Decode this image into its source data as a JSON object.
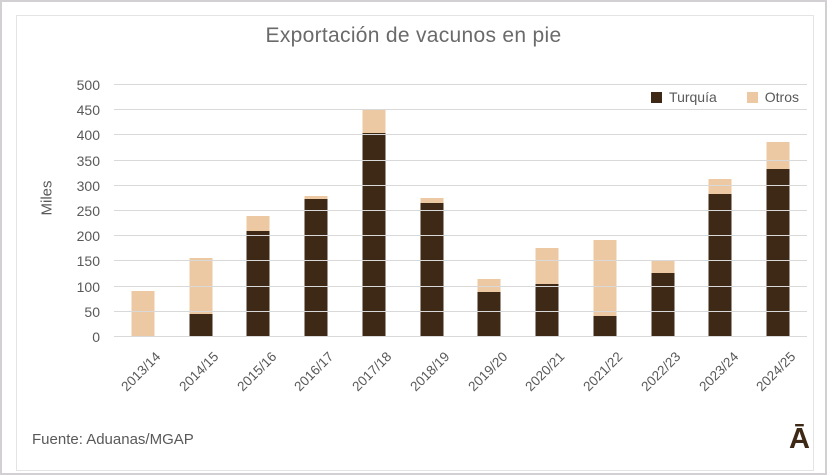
{
  "title": "Exportación de vacunos en pie",
  "footer": {
    "source": "Fuente: Aduanas/MGAP",
    "logo": "Ā"
  },
  "colors": {
    "turquia": "#3E2917",
    "otros": "#ECC8A3",
    "gridline": "#D9D9D9",
    "text_gray": "#595959",
    "title_gray": "#6A6A6A"
  },
  "chart_data": {
    "type": "bar",
    "stacked": true,
    "title": "Exportación de vacunos en pie",
    "xlabel": "",
    "ylabel": "Miles",
    "ylim": [
      0,
      500
    ],
    "ytick_step": 50,
    "grid": true,
    "legend_position": "top-right",
    "categories": [
      "2013/14",
      "2014/15",
      "2015/16",
      "2016/17",
      "2017/18",
      "2018/19",
      "2019/20",
      "2020/21",
      "2021/22",
      "2022/23",
      "2023/24",
      "2024/25"
    ],
    "series": [
      {
        "name": "Turquía",
        "color": "#3E2917",
        "values": [
          0,
          45,
          210,
          273,
          405,
          265,
          90,
          105,
          42,
          127,
          284,
          333
        ]
      },
      {
        "name": "Otros",
        "color": "#ECC8A3",
        "values": [
          92,
          111,
          30,
          6,
          47,
          10,
          25,
          71,
          150,
          26,
          30,
          54
        ]
      }
    ]
  }
}
